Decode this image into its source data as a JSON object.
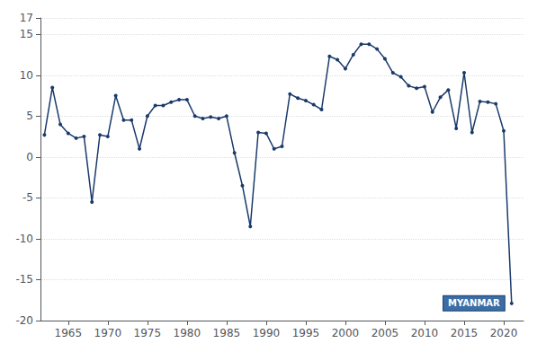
{
  "chart_data": {
    "type": "line",
    "x": [
      1962,
      1963,
      1964,
      1965,
      1966,
      1967,
      1968,
      1969,
      1970,
      1971,
      1972,
      1973,
      1974,
      1975,
      1976,
      1977,
      1978,
      1979,
      1980,
      1981,
      1982,
      1983,
      1984,
      1985,
      1986,
      1987,
      1988,
      1989,
      1990,
      1991,
      1992,
      1993,
      1994,
      1995,
      1996,
      1997,
      1998,
      1999,
      2000,
      2001,
      2002,
      2003,
      2004,
      2005,
      2006,
      2007,
      2008,
      2009,
      2010,
      2011,
      2012,
      2013,
      2014,
      2015,
      2016,
      2017,
      2018,
      2019,
      2020,
      2021
    ],
    "values": [
      2.7,
      8.5,
      4.0,
      2.9,
      2.3,
      2.5,
      -5.5,
      2.7,
      2.5,
      7.5,
      4.5,
      4.5,
      1.0,
      5.0,
      6.3,
      6.3,
      6.7,
      7.0,
      7.0,
      5.0,
      4.7,
      4.9,
      4.7,
      5.0,
      0.5,
      -3.5,
      -8.5,
      3.0,
      2.9,
      1.0,
      1.3,
      7.7,
      7.2,
      6.9,
      6.4,
      5.8,
      12.3,
      11.9,
      10.8,
      12.5,
      13.8,
      13.8,
      13.2,
      12.0,
      10.3,
      9.8,
      8.7,
      8.4,
      8.6,
      5.5,
      7.3,
      8.2,
      3.5,
      10.3,
      3.0,
      6.8,
      6.7,
      6.5,
      3.2,
      -17.9
    ],
    "color": "#1a3a6b",
    "marker": "circle",
    "xlim": [
      1961.5,
      2022.5
    ],
    "xticks": [
      1965,
      1970,
      1975,
      1980,
      1985,
      1990,
      1995,
      2000,
      2005,
      2010,
      2015,
      2020
    ],
    "ylim": [
      -20,
      17
    ],
    "yticks": [
      -20,
      -15,
      -10,
      -5,
      0,
      5,
      10,
      15
    ],
    "grid": true,
    "annotations": [
      {
        "text": "MYANMAR",
        "x": 2021,
        "y": -17.9
      }
    ]
  }
}
